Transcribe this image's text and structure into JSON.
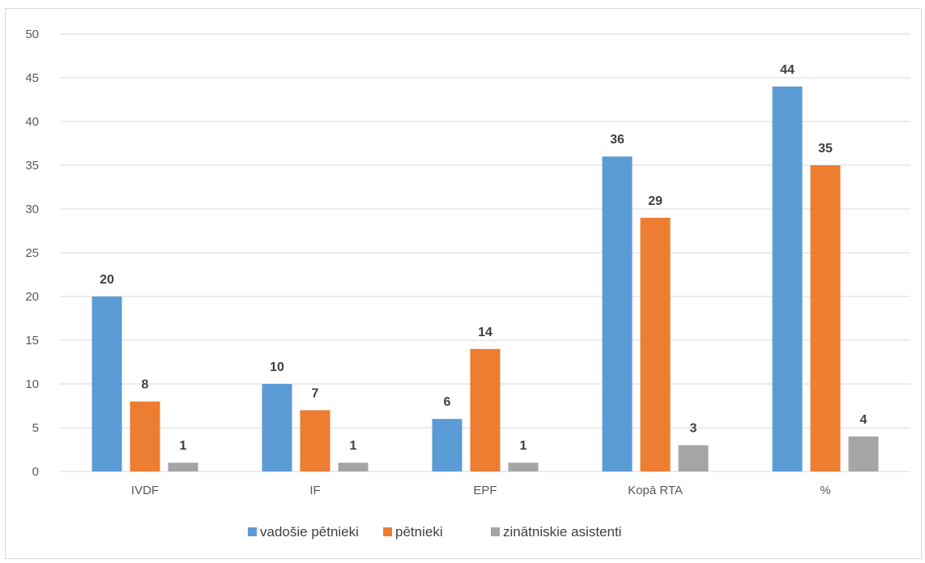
{
  "chart_data": {
    "type": "bar",
    "categories": [
      "IVDF",
      "IF",
      "EPF",
      "Kopā RTA",
      "%"
    ],
    "series": [
      {
        "name": "vadošie pētnieki",
        "color": "#5b9bd5",
        "values": [
          20,
          10,
          6,
          36,
          44
        ]
      },
      {
        "name": "pētnieki",
        "color": "#ed7d31",
        "values": [
          8,
          7,
          14,
          29,
          35
        ]
      },
      {
        "name": "zinātniskie asistenti",
        "color": "#a5a5a5",
        "values": [
          1,
          1,
          1,
          3,
          4
        ]
      }
    ],
    "ylim": [
      0,
      50
    ],
    "yticks": [
      0,
      5,
      10,
      15,
      20,
      25,
      30,
      35,
      40,
      45,
      50
    ],
    "grid": true,
    "legend_position": "bottom",
    "data_labels": true
  }
}
